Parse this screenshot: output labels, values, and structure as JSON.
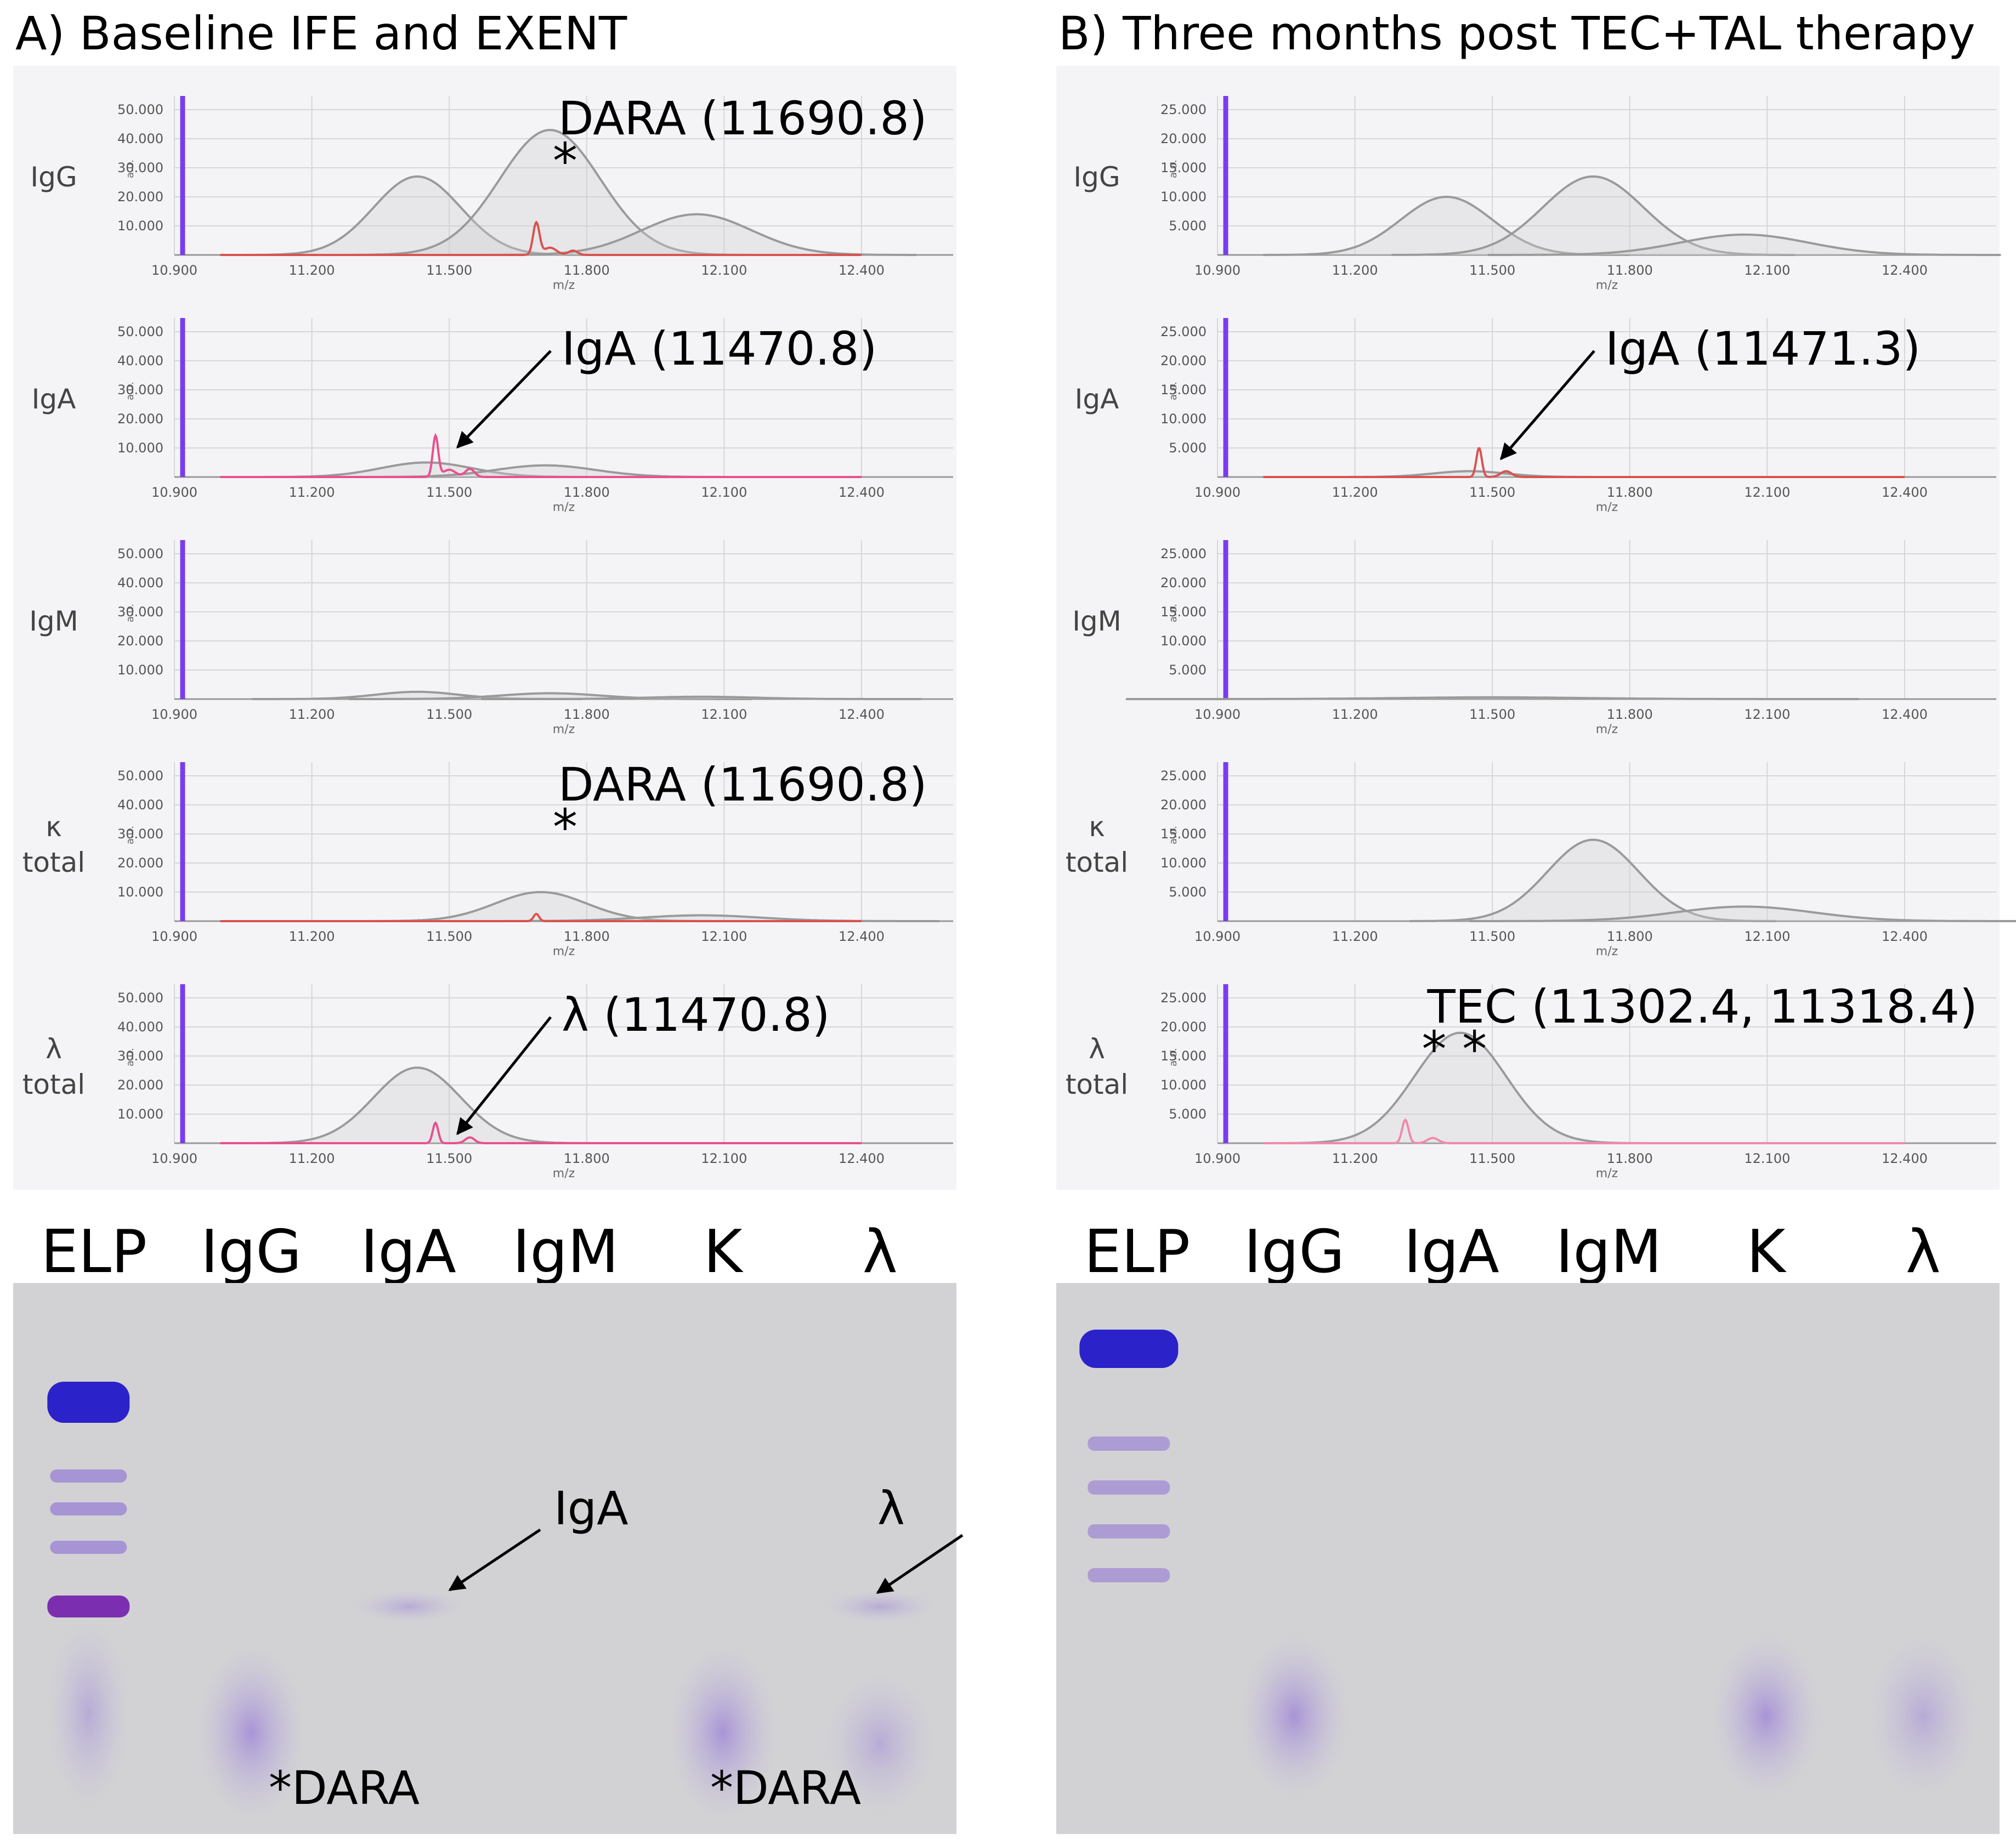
{
  "panels": [
    {
      "title": "A) Baseline IFE and EXENT",
      "spectra": [
        {
          "row_label": [
            "IgG"
          ],
          "y_ticks": [
            "50.000",
            "40.000",
            "30.000",
            "20.000",
            "10.000"
          ],
          "y_max": 50000,
          "x_ticks": [
            "10.900",
            "11.200",
            "11.500",
            "11.800",
            "12.100",
            "12.400"
          ],
          "x_unit": "m/z",
          "y_unit": "a.u.",
          "gray_peaks": [
            {
              "mu": 11430,
              "sigma": 95,
              "amp": 27000
            },
            {
              "mu": 11720,
              "sigma": 110,
              "amp": 43000
            },
            {
              "mu": 12040,
              "sigma": 120,
              "amp": 14000
            }
          ],
          "color_peaks": [
            {
              "mu": 11690,
              "sigma": 7,
              "amp": 11000
            },
            {
              "mu": 11720,
              "sigma": 14,
              "amp": 2500
            },
            {
              "mu": 11770,
              "sigma": 10,
              "amp": 1500
            }
          ],
          "color": "#d9534f",
          "annotation": {
            "text": "DARA (11690.8)",
            "mark": "*"
          }
        },
        {
          "row_label": [
            "IgA"
          ],
          "y_ticks": [
            "50.000",
            "40.000",
            "30.000",
            "20.000",
            "10.000"
          ],
          "y_max": 50000,
          "x_ticks": [
            "10.900",
            "11.200",
            "11.500",
            "11.800",
            "12.100",
            "12.400"
          ],
          "x_unit": "m/z",
          "y_unit": "a.u.",
          "gray_peaks": [
            {
              "mu": 11450,
              "sigma": 100,
              "amp": 5000
            },
            {
              "mu": 11710,
              "sigma": 110,
              "amp": 4000
            }
          ],
          "color_peaks": [
            {
              "mu": 11470,
              "sigma": 6,
              "amp": 14000
            },
            {
              "mu": 11500,
              "sigma": 14,
              "amp": 2500
            },
            {
              "mu": 11545,
              "sigma": 10,
              "amp": 2800
            }
          ],
          "color": "#e8508f",
          "annotation": {
            "text": "IgA (11470.8)",
            "arrow": true
          }
        },
        {
          "row_label": [
            "IgM"
          ],
          "y_ticks": [
            "50.000",
            "40.000",
            "30.000",
            "20.000",
            "10.000"
          ],
          "y_max": 50000,
          "x_ticks": [
            "10.900",
            "11.200",
            "11.500",
            "11.800",
            "12.100",
            "12.400"
          ],
          "x_unit": "m/z",
          "y_unit": "a.u.",
          "gray_peaks": [
            {
              "mu": 11430,
              "sigma": 90,
              "amp": 2500
            },
            {
              "mu": 11720,
              "sigma": 110,
              "amp": 2000
            },
            {
              "mu": 12050,
              "sigma": 120,
              "amp": 800
            }
          ],
          "color_peaks": [],
          "color": "#d9534f"
        },
        {
          "row_label": [
            "κ",
            "total"
          ],
          "y_ticks": [
            "50.000",
            "40.000",
            "30.000",
            "20.000",
            "10.000"
          ],
          "y_max": 50000,
          "x_ticks": [
            "10.900",
            "11.200",
            "11.500",
            "11.800",
            "12.100",
            "12.400"
          ],
          "x_unit": "m/z",
          "y_unit": "a.u.",
          "gray_peaks": [
            {
              "mu": 11700,
              "sigma": 100,
              "amp": 10000
            },
            {
              "mu": 12050,
              "sigma": 130,
              "amp": 2000
            }
          ],
          "color_peaks": [
            {
              "mu": 11690,
              "sigma": 6,
              "amp": 2500
            }
          ],
          "color": "#d9534f",
          "annotation": {
            "text": "DARA (11690.8)",
            "mark": "*"
          }
        },
        {
          "row_label": [
            "λ",
            "total"
          ],
          "y_ticks": [
            "50.000",
            "40.000",
            "30.000",
            "20.000",
            "10.000"
          ],
          "y_max": 50000,
          "x_ticks": [
            "10.900",
            "11.200",
            "11.500",
            "11.800",
            "12.100",
            "12.400"
          ],
          "x_unit": "m/z",
          "y_unit": "a.u.",
          "gray_peaks": [
            {
              "mu": 11430,
              "sigma": 95,
              "amp": 26000
            }
          ],
          "color_peaks": [
            {
              "mu": 11470,
              "sigma": 6,
              "amp": 7000
            },
            {
              "mu": 11545,
              "sigma": 10,
              "amp": 2000
            }
          ],
          "color": "#e8508f",
          "annotation": {
            "text": "λ (11470.8)",
            "arrow": true
          }
        }
      ],
      "gel": {
        "lanes": [
          "ELP",
          "IgG",
          "IgA",
          "IgM",
          "K",
          "λ"
        ],
        "labels": [
          {
            "text": "IgA"
          },
          {
            "text": "λ"
          },
          {
            "text": "*DARA"
          },
          {
            "text": "*DARA"
          }
        ]
      }
    },
    {
      "title": "B) Three months post TEC+TAL therapy",
      "spectra": [
        {
          "row_label": [
            "IgG"
          ],
          "y_ticks": [
            "25.000",
            "20.000",
            "15.000",
            "10.000",
            "5.000"
          ],
          "y_max": 25000,
          "x_ticks": [
            "10.900",
            "11.200",
            "11.500",
            "11.800",
            "12.100",
            "12.400"
          ],
          "x_unit": "m/z",
          "y_unit": "a.u.",
          "gray_peaks": [
            {
              "mu": 11400,
              "sigma": 100,
              "amp": 10000
            },
            {
              "mu": 11720,
              "sigma": 110,
              "amp": 13500
            },
            {
              "mu": 12050,
              "sigma": 140,
              "amp": 3500
            }
          ],
          "color_peaks": [],
          "color": "#d9534f"
        },
        {
          "row_label": [
            "IgA"
          ],
          "y_ticks": [
            "25.000",
            "20.000",
            "15.000",
            "10.000",
            "5.000"
          ],
          "y_max": 25000,
          "x_ticks": [
            "10.900",
            "11.200",
            "11.500",
            "11.800",
            "12.100",
            "12.400"
          ],
          "x_unit": "m/z",
          "y_unit": "a.u.",
          "gray_peaks": [
            {
              "mu": 11450,
              "sigma": 80,
              "amp": 1000
            }
          ],
          "color_peaks": [
            {
              "mu": 11471,
              "sigma": 6,
              "amp": 5000
            },
            {
              "mu": 11530,
              "sigma": 12,
              "amp": 1000
            }
          ],
          "color": "#d9534f",
          "annotation": {
            "text": "IgA (11471.3)",
            "arrow": true
          }
        },
        {
          "row_label": [
            "IgM"
          ],
          "y_ticks": [
            "25.000",
            "20.000",
            "15.000",
            "10.000",
            "5.000"
          ],
          "y_max": 25000,
          "x_ticks": [
            "10.900",
            "11.200",
            "11.500",
            "11.800",
            "12.100",
            "12.400"
          ],
          "x_unit": "m/z",
          "y_unit": "a.u.",
          "gray_peaks": [
            {
              "mu": 11500,
              "sigma": 200,
              "amp": 300
            }
          ],
          "color_peaks": [],
          "color": "#d9534f"
        },
        {
          "row_label": [
            "κ",
            "total"
          ],
          "y_ticks": [
            "25.000",
            "20.000",
            "15.000",
            "10.000",
            "5.000"
          ],
          "y_max": 25000,
          "x_ticks": [
            "10.900",
            "11.200",
            "11.500",
            "11.800",
            "12.100",
            "12.400"
          ],
          "x_unit": "m/z",
          "y_unit": "a.u.",
          "gray_peaks": [
            {
              "mu": 11720,
              "sigma": 100,
              "amp": 14000
            },
            {
              "mu": 12050,
              "sigma": 150,
              "amp": 2500
            }
          ],
          "color_peaks": [],
          "color": "#d9534f"
        },
        {
          "row_label": [
            "λ",
            "total"
          ],
          "y_ticks": [
            "25.000",
            "20.000",
            "15.000",
            "10.000",
            "5.000"
          ],
          "y_max": 25000,
          "x_ticks": [
            "10.900",
            "11.200",
            "11.500",
            "11.800",
            "12.100",
            "12.400"
          ],
          "x_unit": "m/z",
          "y_unit": "a.u.",
          "gray_peaks": [
            {
              "mu": 11430,
              "sigma": 100,
              "amp": 19000
            }
          ],
          "color_peaks": [
            {
              "mu": 11310,
              "sigma": 7,
              "amp": 4000
            },
            {
              "mu": 11370,
              "sigma": 12,
              "amp": 900
            }
          ],
          "color": "#f08aa8",
          "annotation": {
            "text": "TEC (11302.4, 11318.4)",
            "mark": "* *"
          }
        }
      ],
      "gel": {
        "lanes": [
          "ELP",
          "IgG",
          "IgA",
          "IgM",
          "K",
          "λ"
        ],
        "labels": []
      }
    }
  ],
  "chart_data": [
    {
      "type": "line",
      "panel": "A",
      "row": "IgG",
      "title": "A) Baseline IFE and EXENT",
      "xlabel": "m/z",
      "ylabel": "a.u.",
      "xlim": [
        10900,
        12600
      ],
      "ylim": [
        0,
        50000
      ],
      "series": [
        {
          "name": "gray peaks (gaussian mu/sigma/amp)",
          "values": [
            [
              11430,
              95,
              27000
            ],
            [
              11720,
              110,
              43000
            ],
            [
              12040,
              120,
              14000
            ]
          ]
        },
        {
          "name": "colored trace peaks",
          "values": [
            [
              11690,
              7,
              11000
            ],
            [
              11720,
              14,
              2500
            ],
            [
              11770,
              10,
              1500
            ]
          ]
        }
      ]
    },
    {
      "type": "line",
      "panel": "A",
      "row": "IgA",
      "xlabel": "m/z",
      "ylabel": "a.u.",
      "xlim": [
        10900,
        12600
      ],
      "ylim": [
        0,
        50000
      ],
      "series": [
        {
          "name": "gray peaks (gaussian mu/sigma/amp)",
          "values": [
            [
              11450,
              100,
              5000
            ],
            [
              11710,
              110,
              4000
            ]
          ]
        },
        {
          "name": "colored trace peaks",
          "values": [
            [
              11470,
              6,
              14000
            ],
            [
              11500,
              14,
              2500
            ],
            [
              11545,
              10,
              2800
            ]
          ]
        }
      ]
    },
    {
      "type": "line",
      "panel": "A",
      "row": "IgM",
      "xlabel": "m/z",
      "ylabel": "a.u.",
      "xlim": [
        10900,
        12600
      ],
      "ylim": [
        0,
        50000
      ],
      "series": [
        {
          "name": "gray peaks (gaussian mu/sigma/amp)",
          "values": [
            [
              11430,
              90,
              2500
            ],
            [
              11720,
              110,
              2000
            ],
            [
              12050,
              120,
              800
            ]
          ]
        }
      ]
    },
    {
      "type": "line",
      "panel": "A",
      "row": "κ total",
      "xlabel": "m/z",
      "ylabel": "a.u.",
      "xlim": [
        10900,
        12600
      ],
      "ylim": [
        0,
        50000
      ],
      "series": [
        {
          "name": "gray peaks (gaussian mu/sigma/amp)",
          "values": [
            [
              11700,
              100,
              10000
            ],
            [
              12050,
              130,
              2000
            ]
          ]
        },
        {
          "name": "colored trace peaks",
          "values": [
            [
              11690,
              6,
              2500
            ]
          ]
        }
      ]
    },
    {
      "type": "line",
      "panel": "A",
      "row": "λ total",
      "xlabel": "m/z",
      "ylabel": "a.u.",
      "xlim": [
        10900,
        12600
      ],
      "ylim": [
        0,
        50000
      ],
      "series": [
        {
          "name": "gray peaks (gaussian mu/sigma/amp)",
          "values": [
            [
              11430,
              95,
              26000
            ]
          ]
        },
        {
          "name": "colored trace peaks",
          "values": [
            [
              11470,
              6,
              7000
            ],
            [
              11545,
              10,
              2000
            ]
          ]
        }
      ]
    },
    {
      "type": "line",
      "panel": "B",
      "row": "IgG",
      "title": "B) Three months post TEC+TAL therapy",
      "xlabel": "m/z",
      "ylabel": "a.u.",
      "xlim": [
        10900,
        12600
      ],
      "ylim": [
        0,
        25000
      ],
      "series": [
        {
          "name": "gray peaks (gaussian mu/sigma/amp)",
          "values": [
            [
              11400,
              100,
              10000
            ],
            [
              11720,
              110,
              13500
            ],
            [
              12050,
              140,
              3500
            ]
          ]
        }
      ]
    },
    {
      "type": "line",
      "panel": "B",
      "row": "IgA",
      "xlabel": "m/z",
      "ylabel": "a.u.",
      "xlim": [
        10900,
        12600
      ],
      "ylim": [
        0,
        25000
      ],
      "series": [
        {
          "name": "gray peaks (gaussian mu/sigma/amp)",
          "values": [
            [
              11450,
              80,
              1000
            ]
          ]
        },
        {
          "name": "colored trace peaks",
          "values": [
            [
              11471,
              6,
              5000
            ],
            [
              11530,
              12,
              1000
            ]
          ]
        }
      ]
    },
    {
      "type": "line",
      "panel": "B",
      "row": "IgM",
      "xlabel": "m/z",
      "ylabel": "a.u.",
      "xlim": [
        10900,
        12600
      ],
      "ylim": [
        0,
        25000
      ],
      "series": [
        {
          "name": "gray peaks (gaussian mu/sigma/amp)",
          "values": [
            [
              11500,
              200,
              300
            ]
          ]
        }
      ]
    },
    {
      "type": "line",
      "panel": "B",
      "row": "κ total",
      "xlabel": "m/z",
      "ylabel": "a.u.",
      "xlim": [
        10900,
        12600
      ],
      "ylim": [
        0,
        25000
      ],
      "series": [
        {
          "name": "gray peaks (gaussian mu/sigma/amp)",
          "values": [
            [
              11720,
              100,
              14000
            ],
            [
              12050,
              150,
              2500
            ]
          ]
        }
      ]
    },
    {
      "type": "line",
      "panel": "B",
      "row": "λ total",
      "xlabel": "m/z",
      "ylabel": "a.u.",
      "xlim": [
        10900,
        12600
      ],
      "ylim": [
        0,
        25000
      ],
      "series": [
        {
          "name": "gray peaks (gaussian mu/sigma/amp)",
          "values": [
            [
              11430,
              100,
              19000
            ]
          ]
        },
        {
          "name": "colored trace peaks",
          "values": [
            [
              11310,
              7,
              4000
            ],
            [
              11370,
              12,
              900
            ]
          ]
        }
      ]
    }
  ]
}
